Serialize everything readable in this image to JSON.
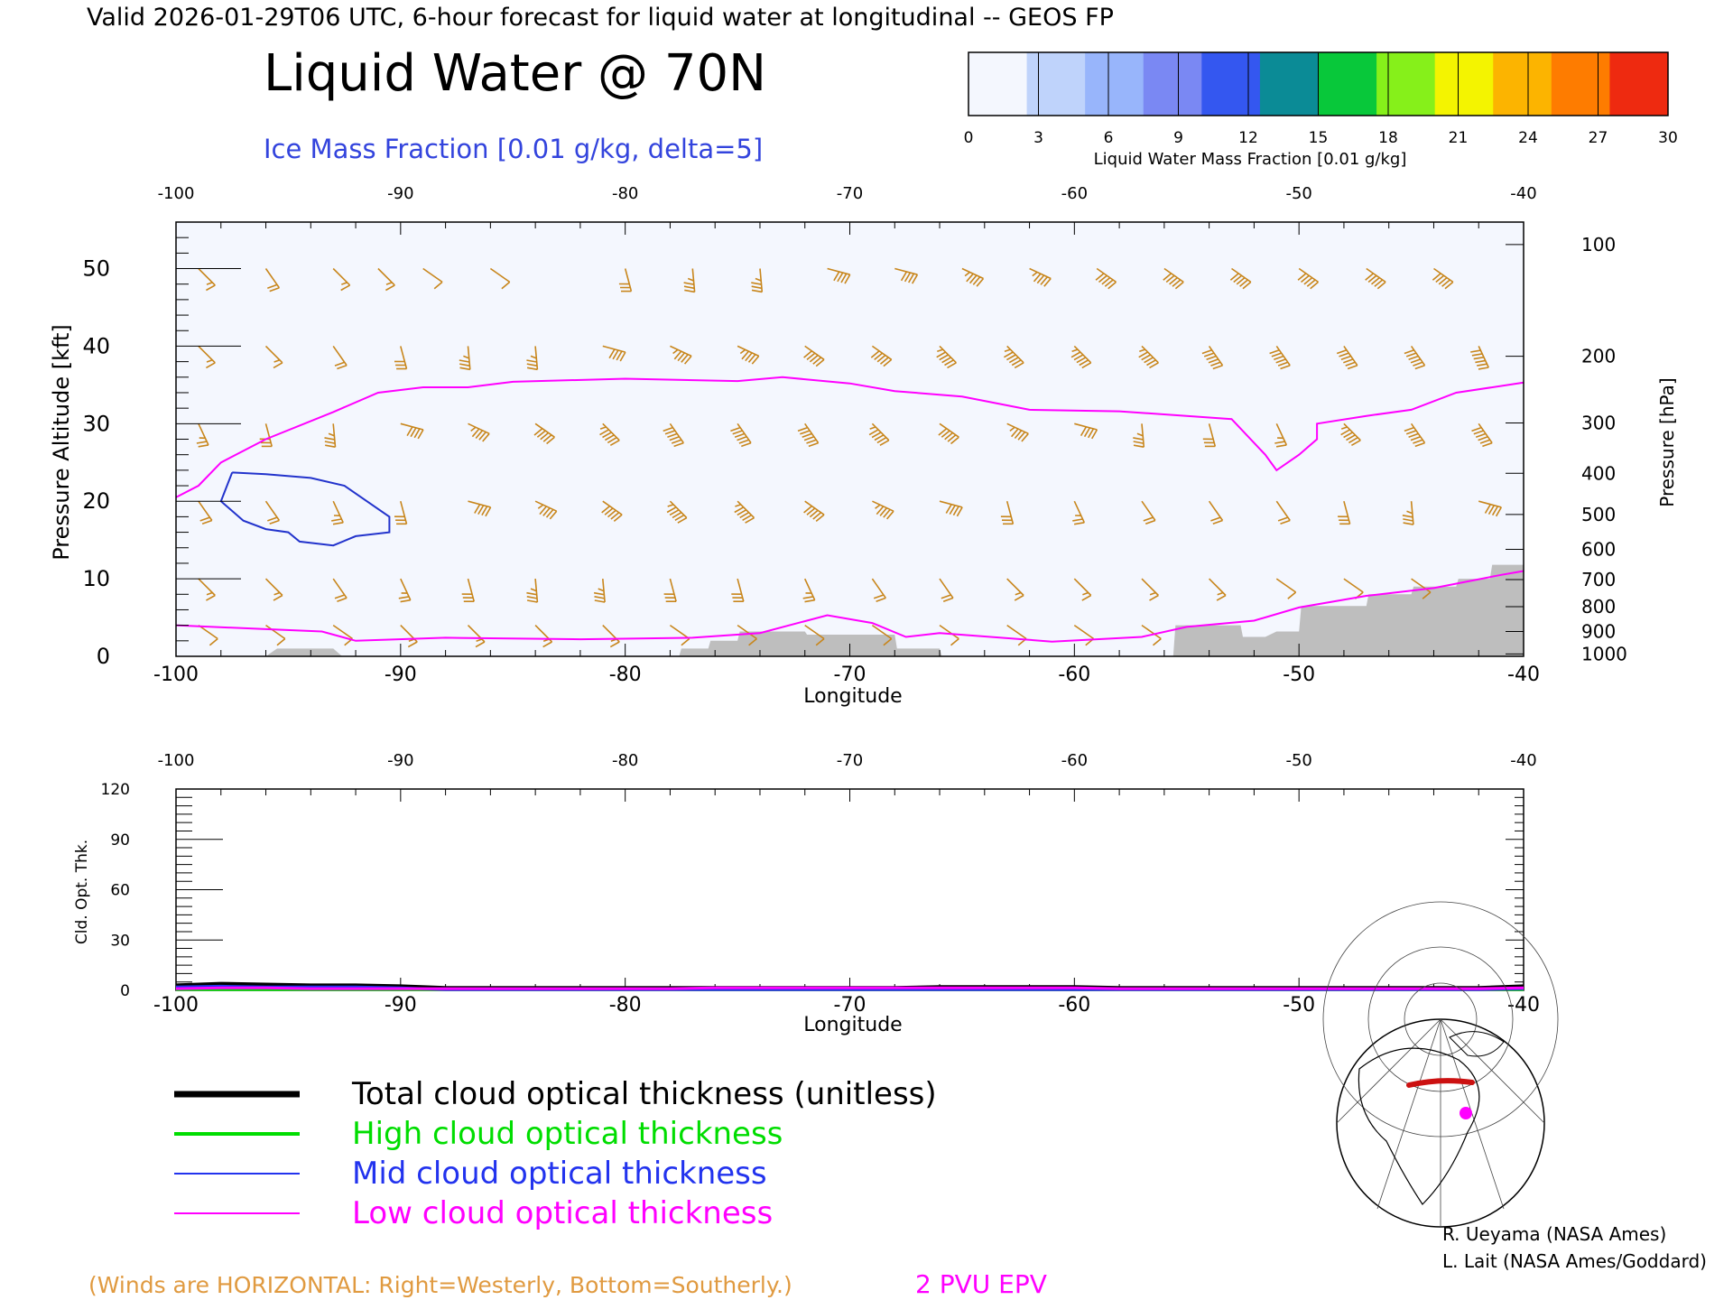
{
  "header": {
    "valid_line": "Valid 2026-01-29T06 UTC, 6-hour forecast for liquid water at longitudinal -- GEOS FP",
    "title": "Liquid Water @ 70N",
    "subtitle": "Ice Mass Fraction [0.01 g/kg, delta=5]"
  },
  "colorbar": {
    "ticks": [
      "0",
      "3",
      "6",
      "9",
      "12",
      "15",
      "18",
      "21",
      "24",
      "27",
      "30"
    ],
    "label": "Liquid Water Mass Fraction [0.01 g/kg]",
    "colors": [
      "#f4f7fe",
      "#bfd3fb",
      "#98b5fb",
      "#7a88f3",
      "#3457f0",
      "#0b8b96",
      "#08c83a",
      "#86f01a",
      "#f4f400",
      "#fcb400",
      "#fe7c00",
      "#ee2a10"
    ]
  },
  "chart_data": [
    {
      "type": "cross-section",
      "xlabel": "Longitude",
      "ylabel": "Pressure Altitude [kft]",
      "y2label": "Pressure [hPa]",
      "xlim": [
        -100,
        -40
      ],
      "ylim": [
        0,
        56
      ],
      "x_ticks": [
        "-100",
        "-90",
        "-80",
        "-70",
        "-60",
        "-50",
        "-40"
      ],
      "y_ticks": [
        "0",
        "10",
        "20",
        "30",
        "40",
        "50"
      ],
      "pressure_ticks": [
        {
          "label": "100",
          "kft": 53.1
        },
        {
          "label": "200",
          "kft": 38.7
        },
        {
          "label": "300",
          "kft": 30.1
        },
        {
          "label": "400",
          "kft": 23.6
        },
        {
          "label": "500",
          "kft": 18.3
        },
        {
          "label": "600",
          "kft": 13.8
        },
        {
          "label": "700",
          "kft": 9.9
        },
        {
          "label": "800",
          "kft": 6.4
        },
        {
          "label": "900",
          "kft": 3.2
        },
        {
          "label": "1000",
          "kft": 0.3
        }
      ],
      "epv_2pvu_upper": [
        [
          -100,
          20.5
        ],
        [
          -99,
          22
        ],
        [
          -98,
          25
        ],
        [
          -96,
          28
        ],
        [
          -93,
          31.5
        ],
        [
          -91,
          34
        ],
        [
          -89,
          34.7
        ],
        [
          -87,
          34.7
        ],
        [
          -85,
          35.4
        ],
        [
          -80,
          35.8
        ],
        [
          -75,
          35.5
        ],
        [
          -73,
          36
        ],
        [
          -70,
          35.2
        ],
        [
          -68,
          34.2
        ],
        [
          -65,
          33.5
        ],
        [
          -62,
          31.8
        ],
        [
          -58,
          31.6
        ],
        [
          -55,
          31
        ],
        [
          -53,
          30.6
        ],
        [
          -51.5,
          26
        ],
        [
          -51,
          24
        ],
        [
          -50,
          26
        ],
        [
          -49.2,
          28
        ],
        [
          -49.2,
          30
        ],
        [
          -47,
          31
        ],
        [
          -45,
          31.8
        ],
        [
          -43,
          34
        ],
        [
          -40,
          35.3
        ]
      ],
      "epv_2pvu_lower": [
        [
          -100,
          4
        ],
        [
          -96,
          3.5
        ],
        [
          -93.5,
          3.2
        ],
        [
          -92,
          2
        ],
        [
          -88,
          2.4
        ],
        [
          -82,
          2.2
        ],
        [
          -77,
          2.4
        ],
        [
          -74,
          3
        ],
        [
          -71,
          5.3
        ],
        [
          -69,
          4.3
        ],
        [
          -67.5,
          2.5
        ],
        [
          -66,
          3
        ],
        [
          -61,
          1.9
        ],
        [
          -57,
          2.5
        ],
        [
          -55,
          3.8
        ],
        [
          -52,
          4.6
        ],
        [
          -50,
          6.3
        ],
        [
          -47,
          7.8
        ],
        [
          -44,
          8.8
        ],
        [
          -41,
          10.5
        ],
        [
          -40,
          11
        ]
      ],
      "ice_contour_5": [
        [
          -97.5,
          23.7
        ],
        [
          -96,
          23.5
        ],
        [
          -94,
          23
        ],
        [
          -92.5,
          22
        ],
        [
          -90.5,
          18
        ],
        [
          -90.5,
          16
        ],
        [
          -92,
          15.5
        ],
        [
          -93,
          14.3
        ],
        [
          -94.5,
          14.8
        ],
        [
          -95,
          16
        ],
        [
          -96,
          16.4
        ],
        [
          -97,
          17.5
        ],
        [
          -98,
          20
        ],
        [
          -97.5,
          23.7
        ]
      ],
      "surface_terrain": [
        [
          -96,
          0
        ],
        [
          -95.5,
          1
        ],
        [
          -93,
          1
        ],
        [
          -92.6,
          0
        ],
        [
          -77.6,
          0
        ],
        [
          -77.5,
          1
        ],
        [
          -76.3,
          1
        ],
        [
          -76.2,
          2
        ],
        [
          -75,
          2
        ],
        [
          -74.9,
          3.2
        ],
        [
          -72,
          3.2
        ],
        [
          -71.9,
          2.8
        ],
        [
          -68,
          2.8
        ],
        [
          -67.9,
          1
        ],
        [
          -66,
          1
        ],
        [
          -65.9,
          0
        ],
        [
          -55.6,
          0
        ],
        [
          -55.5,
          4
        ],
        [
          -52.6,
          4
        ],
        [
          -52.5,
          2.5
        ],
        [
          -51.5,
          2.5
        ],
        [
          -51,
          3.2
        ],
        [
          -50,
          3.2
        ],
        [
          -49.9,
          6.5
        ],
        [
          -47,
          6.5
        ],
        [
          -46.9,
          8
        ],
        [
          -45,
          8
        ],
        [
          -44.9,
          9
        ],
        [
          -43,
          9
        ],
        [
          -42.9,
          10
        ],
        [
          -41.5,
          10
        ],
        [
          -41.4,
          11.8
        ],
        [
          -40,
          11.8
        ],
        [
          -40,
          0
        ]
      ],
      "wind_barbs_kt": [
        [
          -99,
          50,
          15
        ],
        [
          -96,
          50,
          20
        ],
        [
          -93,
          50,
          15
        ],
        [
          -91,
          50,
          15
        ],
        [
          -89,
          50,
          10
        ],
        [
          -86,
          50,
          10
        ],
        [
          -80,
          50,
          30
        ],
        [
          -77,
          50,
          35
        ],
        [
          -74,
          50,
          35
        ],
        [
          -71,
          50,
          40
        ],
        [
          -68,
          50,
          40
        ],
        [
          -65,
          50,
          45
        ],
        [
          -62,
          50,
          45
        ],
        [
          -59,
          50,
          50
        ],
        [
          -56,
          50,
          50
        ],
        [
          -53,
          50,
          50
        ],
        [
          -50,
          50,
          50
        ],
        [
          -47,
          50,
          50
        ],
        [
          -44,
          50,
          50
        ],
        [
          -99,
          40,
          15
        ],
        [
          -96,
          40,
          15
        ],
        [
          -93,
          40,
          20
        ],
        [
          -90,
          40,
          30
        ],
        [
          -87,
          40,
          35
        ],
        [
          -84,
          40,
          35
        ],
        [
          -81,
          40,
          40
        ],
        [
          -78,
          40,
          45
        ],
        [
          -75,
          40,
          45
        ],
        [
          -72,
          40,
          50
        ],
        [
          -69,
          40,
          50
        ],
        [
          -66,
          40,
          55
        ],
        [
          -63,
          40,
          55
        ],
        [
          -60,
          40,
          55
        ],
        [
          -57,
          40,
          55
        ],
        [
          -54,
          40,
          60
        ],
        [
          -51,
          40,
          60
        ],
        [
          -48,
          40,
          60
        ],
        [
          -45,
          40,
          60
        ],
        [
          -42,
          40,
          65
        ],
        [
          -99,
          30,
          25
        ],
        [
          -96,
          30,
          30
        ],
        [
          -93,
          30,
          35
        ],
        [
          -90,
          30,
          40
        ],
        [
          -87,
          30,
          45
        ],
        [
          -84,
          30,
          50
        ],
        [
          -81,
          30,
          55
        ],
        [
          -78,
          30,
          60
        ],
        [
          -75,
          30,
          60
        ],
        [
          -72,
          30,
          60
        ],
        [
          -69,
          30,
          55
        ],
        [
          -66,
          30,
          50
        ],
        [
          -63,
          30,
          45
        ],
        [
          -60,
          30,
          40
        ],
        [
          -57,
          30,
          35
        ],
        [
          -54,
          30,
          30
        ],
        [
          -51,
          30,
          25
        ],
        [
          -48,
          30,
          55
        ],
        [
          -45,
          30,
          60
        ],
        [
          -42,
          30,
          60
        ],
        [
          -99,
          20,
          20
        ],
        [
          -96,
          20,
          20
        ],
        [
          -93,
          20,
          25
        ],
        [
          -90,
          20,
          30
        ],
        [
          -87,
          20,
          40
        ],
        [
          -84,
          20,
          45
        ],
        [
          -81,
          20,
          50
        ],
        [
          -78,
          20,
          55
        ],
        [
          -75,
          20,
          55
        ],
        [
          -72,
          20,
          50
        ],
        [
          -69,
          20,
          45
        ],
        [
          -66,
          20,
          40
        ],
        [
          -63,
          20,
          30
        ],
        [
          -60,
          20,
          25
        ],
        [
          -57,
          20,
          20
        ],
        [
          -54,
          20,
          20
        ],
        [
          -51,
          20,
          20
        ],
        [
          -48,
          20,
          30
        ],
        [
          -45,
          20,
          35
        ],
        [
          -42,
          20,
          40
        ],
        [
          -99,
          10,
          15
        ],
        [
          -96,
          10,
          15
        ],
        [
          -93,
          10,
          20
        ],
        [
          -90,
          10,
          25
        ],
        [
          -87,
          10,
          30
        ],
        [
          -84,
          10,
          35
        ],
        [
          -81,
          10,
          35
        ],
        [
          -78,
          10,
          30
        ],
        [
          -75,
          10,
          30
        ],
        [
          -72,
          10,
          25
        ],
        [
          -69,
          10,
          20
        ],
        [
          -66,
          10,
          20
        ],
        [
          -63,
          10,
          15
        ],
        [
          -60,
          10,
          15
        ],
        [
          -57,
          10,
          15
        ],
        [
          -54,
          10,
          15
        ],
        [
          -51,
          10,
          10
        ],
        [
          -48,
          10,
          10
        ],
        [
          -45,
          10,
          10
        ],
        [
          -99,
          4,
          10
        ],
        [
          -96,
          4,
          10
        ],
        [
          -93,
          4,
          10
        ],
        [
          -90,
          4,
          15
        ],
        [
          -87,
          4,
          15
        ],
        [
          -84,
          4,
          15
        ],
        [
          -81,
          4,
          15
        ],
        [
          -78,
          4,
          10
        ],
        [
          -75,
          4,
          10
        ],
        [
          -72,
          4,
          10
        ],
        [
          -69,
          4,
          10
        ],
        [
          -66,
          4,
          10
        ],
        [
          -63,
          4,
          10
        ],
        [
          -60,
          4,
          10
        ],
        [
          -57,
          4,
          10
        ]
      ]
    },
    {
      "type": "line",
      "xlabel": "Longitude",
      "ylabel": "Cld. Opt. Thk.",
      "xlim": [
        -100,
        -40
      ],
      "ylim": [
        0,
        120
      ],
      "x_ticks": [
        "-100",
        "-90",
        "-80",
        "-70",
        "-60",
        "-50",
        "-40"
      ],
      "y_ticks": [
        "0",
        "30",
        "60",
        "90",
        "120"
      ],
      "x": [
        -100,
        -98,
        -96,
        -94,
        -92,
        -90,
        -88,
        -86,
        -84,
        -82,
        -80,
        -78,
        -76,
        -74,
        -72,
        -70,
        -68,
        -66,
        -64,
        -62,
        -60,
        -58,
        -56,
        -54,
        -52,
        -50,
        -48,
        -46,
        -44,
        -42,
        -40
      ],
      "series": [
        {
          "name": "Total cloud optical thickness (unitless)",
          "color": "#000000",
          "values": [
            3,
            4,
            3.5,
            3,
            3,
            2.5,
            1.5,
            1.5,
            1.5,
            1.5,
            1.5,
            1.5,
            1.5,
            1.5,
            1.5,
            1.5,
            1.5,
            2,
            2,
            2,
            2,
            1.5,
            1.5,
            1.5,
            1.5,
            1.5,
            1.5,
            1.5,
            1.5,
            1.5,
            2.5
          ]
        },
        {
          "name": "High cloud optical thickness",
          "color": "#00dd00",
          "values": [
            0.5,
            0.5,
            0.5,
            0.5,
            0.5,
            0.5,
            0.5,
            0.5,
            0.5,
            0.5,
            0.5,
            0.5,
            0.5,
            0.5,
            0.5,
            0.5,
            0.5,
            0.5,
            0.5,
            0.5,
            0.5,
            0.5,
            0.5,
            0.5,
            0.5,
            0.5,
            0.5,
            0.5,
            0.5,
            0.5,
            0.5
          ]
        },
        {
          "name": "Mid cloud optical thickness",
          "color": "#2233ee",
          "values": [
            2,
            2.5,
            2,
            2,
            2,
            1.5,
            0.5,
            0.5,
            0.5,
            0.5,
            0.5,
            0.5,
            0.5,
            0.5,
            0.5,
            0.5,
            0.5,
            0.5,
            0.5,
            0.5,
            0.5,
            0.5,
            0.5,
            0.5,
            0.5,
            0.5,
            0.5,
            0.5,
            0.5,
            0.5,
            1
          ]
        },
        {
          "name": "Low cloud optical thickness",
          "color": "#ff00ff",
          "values": [
            1,
            1.5,
            1.5,
            1,
            1,
            1,
            1,
            1,
            1,
            1,
            1,
            1,
            1.5,
            1.5,
            1.5,
            1.5,
            1.5,
            1.5,
            1.5,
            1.5,
            1.5,
            1,
            1,
            1,
            1,
            1,
            1,
            1,
            1,
            1,
            1.5
          ]
        }
      ]
    }
  ],
  "footer": {
    "winds_note": "(Winds are HORIZONTAL: Right=Westerly, Bottom=Southerly.)",
    "epv_label": "2 PVU EPV",
    "credit_1": "R. Ueyama (NASA Ames)",
    "credit_2": "L. Lait (NASA Ames/Goddard)"
  },
  "colors": {
    "barb": "#c8861c",
    "epv": "#ff00ff",
    "ice": "#2233cc",
    "terrain": "#bebebe",
    "field_background": "#f4f7fe",
    "subtitle": "#3344dd",
    "note": "#e09a40"
  }
}
